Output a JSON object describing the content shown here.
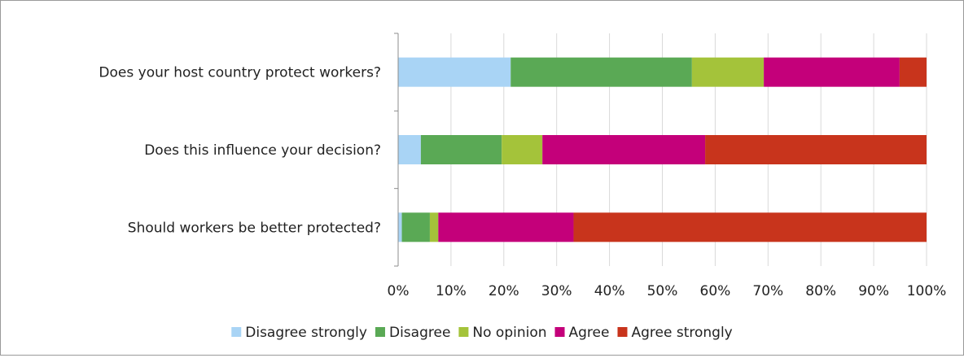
{
  "chart_data": {
    "type": "bar",
    "orientation": "horizontal",
    "stacked": "percent",
    "categories": [
      "Does your host country protect workers?",
      "Does this influence your decision?",
      "Should workers be better protected?"
    ],
    "series": [
      {
        "name": "Disagree strongly",
        "color": "#a9d4f5",
        "values": [
          21.3,
          4.3,
          0.7
        ]
      },
      {
        "name": "Disagree",
        "color": "#5aa955",
        "values": [
          34.3,
          15.3,
          5.3
        ]
      },
      {
        "name": "No opinion",
        "color": "#a4c33a",
        "values": [
          13.6,
          7.7,
          1.6
        ]
      },
      {
        "name": "Agree",
        "color": "#c4007a",
        "values": [
          25.7,
          30.8,
          25.6
        ]
      },
      {
        "name": "Agree strongly",
        "color": "#c8341c",
        "values": [
          5.1,
          41.9,
          66.8
        ]
      }
    ],
    "x_ticks": [
      "0%",
      "10%",
      "20%",
      "30%",
      "40%",
      "50%",
      "60%",
      "70%",
      "80%",
      "90%",
      "100%"
    ],
    "xlim": [
      0,
      100
    ],
    "grid": true,
    "legend_position": "bottom",
    "title": "",
    "xlabel": "",
    "ylabel": ""
  }
}
